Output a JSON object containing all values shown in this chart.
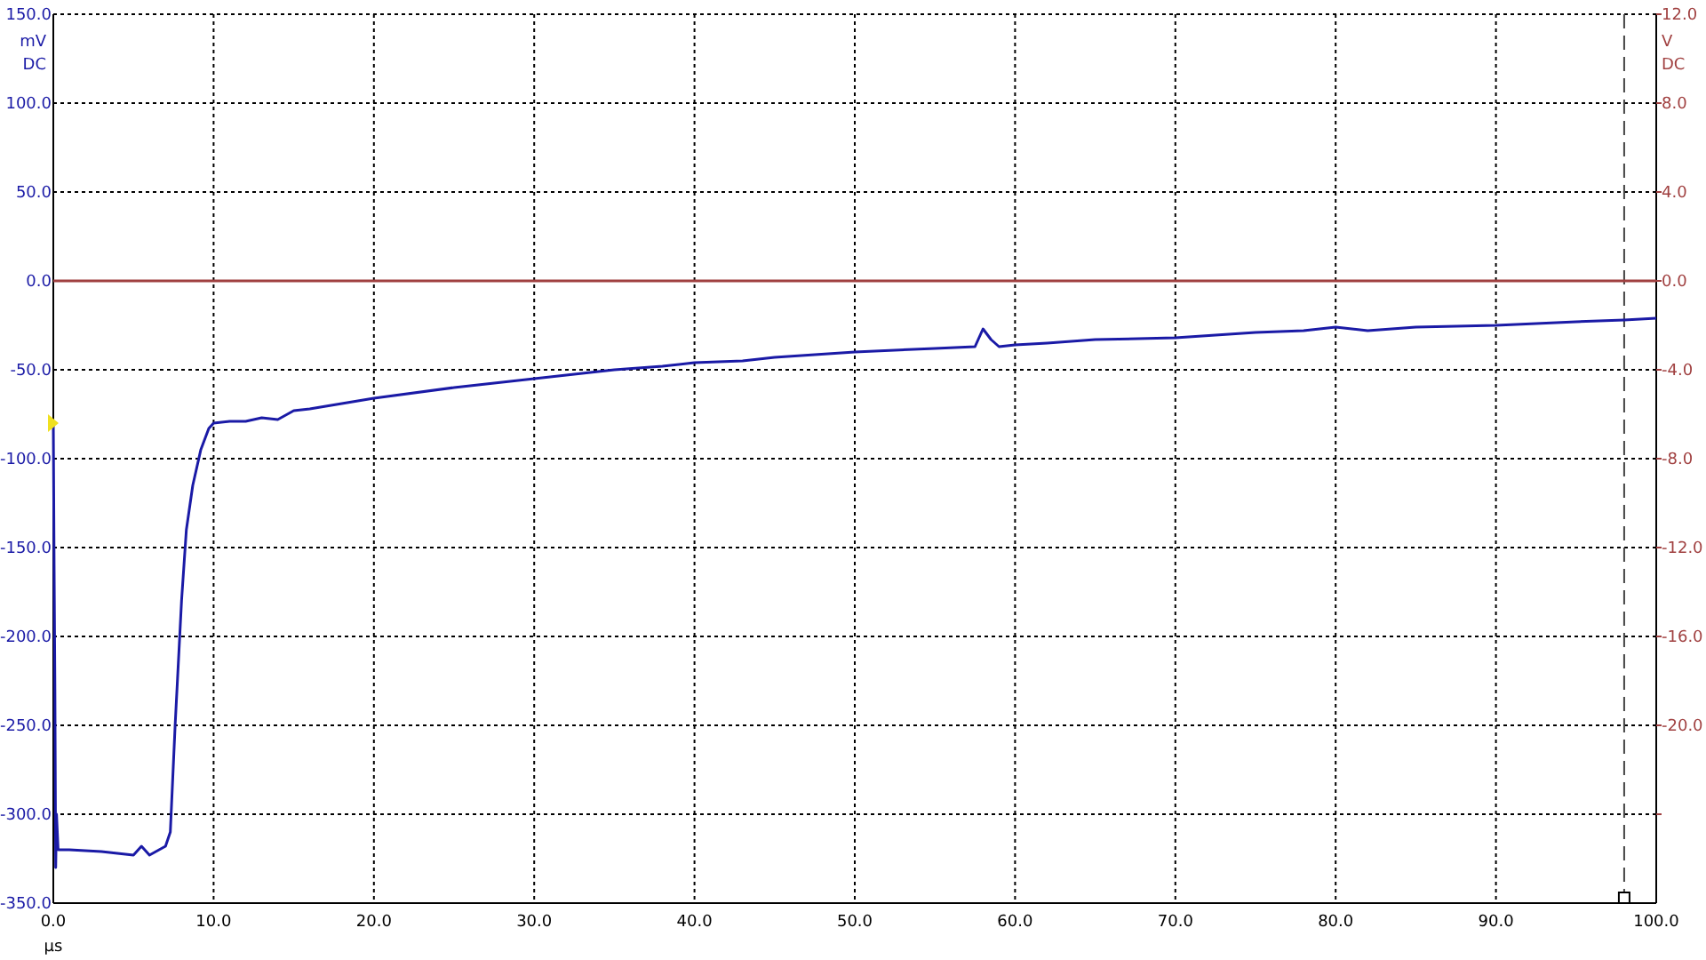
{
  "chart_data": {
    "type": "line",
    "xlabel": "µs",
    "ylabel": "mV DC",
    "y2label": "V DC",
    "x": [
      0,
      0.05,
      0.1,
      0.15,
      0.2,
      0.3,
      1,
      3,
      5,
      5.5,
      6,
      7,
      7.3,
      7.6,
      8,
      8.3,
      8.7,
      9.2,
      9.7,
      10,
      11,
      12,
      13,
      14,
      15,
      16,
      18,
      20,
      25,
      30,
      32,
      35,
      38,
      40,
      43,
      45,
      50,
      55,
      57.5,
      58,
      58.5,
      59,
      60,
      62,
      65,
      70,
      75,
      78,
      80,
      82,
      85,
      90,
      95,
      98,
      100
    ],
    "series": [
      {
        "color": "#1a1aa6",
        "values": [
          -80,
          -160,
          -230,
          -330,
          -300,
          -320,
          -320,
          -321,
          -323,
          -318,
          -323,
          -318,
          -310,
          -250,
          -180,
          -140,
          -115,
          -95,
          -83,
          -80,
          -79,
          -79,
          -77,
          -78,
          -73,
          -72,
          -69,
          -66,
          -60,
          -55,
          -53,
          -50,
          -48,
          -46,
          -45,
          -43,
          -40,
          -38,
          -37,
          -27,
          -33,
          -37,
          -36,
          -35,
          -33,
          -32,
          -29,
          -28,
          -26,
          -28,
          -26,
          -25,
          -23,
          -22,
          -21
        ]
      },
      {
        "color": "#a04040",
        "axis": "y2",
        "x": [
          0,
          100
        ],
        "values": [
          0,
          0
        ]
      }
    ],
    "xlim": [
      0,
      100
    ],
    "xticks": [
      {
        "value": 0,
        "label": "0.0"
      },
      {
        "value": 10,
        "label": "10.0"
      },
      {
        "value": 20,
        "label": "20.0"
      },
      {
        "value": 30,
        "label": "30.0"
      },
      {
        "value": 40,
        "label": "40.0"
      },
      {
        "value": 50,
        "label": "50.0"
      },
      {
        "value": 60,
        "label": "60.0"
      },
      {
        "value": 70,
        "label": "70.0"
      },
      {
        "value": 80,
        "label": "80.0"
      },
      {
        "value": 90,
        "label": "90.0"
      },
      {
        "value": 100,
        "label": "100.0"
      }
    ],
    "ylim": [
      -350,
      150
    ],
    "yticks": [
      {
        "value": -350,
        "label": "-350.0"
      },
      {
        "value": -300,
        "label": "-300.0"
      },
      {
        "value": -250,
        "label": "-250.0"
      },
      {
        "value": -200,
        "label": "-200.0"
      },
      {
        "value": -150,
        "label": "-150.0"
      },
      {
        "value": -100,
        "label": "-100.0"
      },
      {
        "value": -50,
        "label": "-50.0"
      },
      {
        "value": 0,
        "label": "0.0"
      },
      {
        "value": 50,
        "label": "50.0"
      },
      {
        "value": 100,
        "label": "100.0"
      },
      {
        "value": 150,
        "label": "150.0"
      }
    ],
    "y2lim": [
      -28,
      12
    ],
    "y2ticks": [
      {
        "value": -24,
        "label": null
      },
      {
        "value": -20,
        "label": "-20.0"
      },
      {
        "value": -16,
        "label": "-16.0"
      },
      {
        "value": -12,
        "label": "-12.0"
      },
      {
        "value": -8,
        "label": "-8.0"
      },
      {
        "value": -4,
        "label": "-4.0"
      },
      {
        "value": 0,
        "label": "0.0"
      },
      {
        "value": 4,
        "label": "4.0"
      },
      {
        "value": 8,
        "label": "8.0"
      },
      {
        "value": 12,
        "label": "12.0"
      }
    ],
    "ref_lines": [
      {
        "axis": "x",
        "value": 98,
        "color": "#444444",
        "line_style": "dashed"
      }
    ],
    "grid": true,
    "line_style": "solid",
    "marker": "none"
  }
}
